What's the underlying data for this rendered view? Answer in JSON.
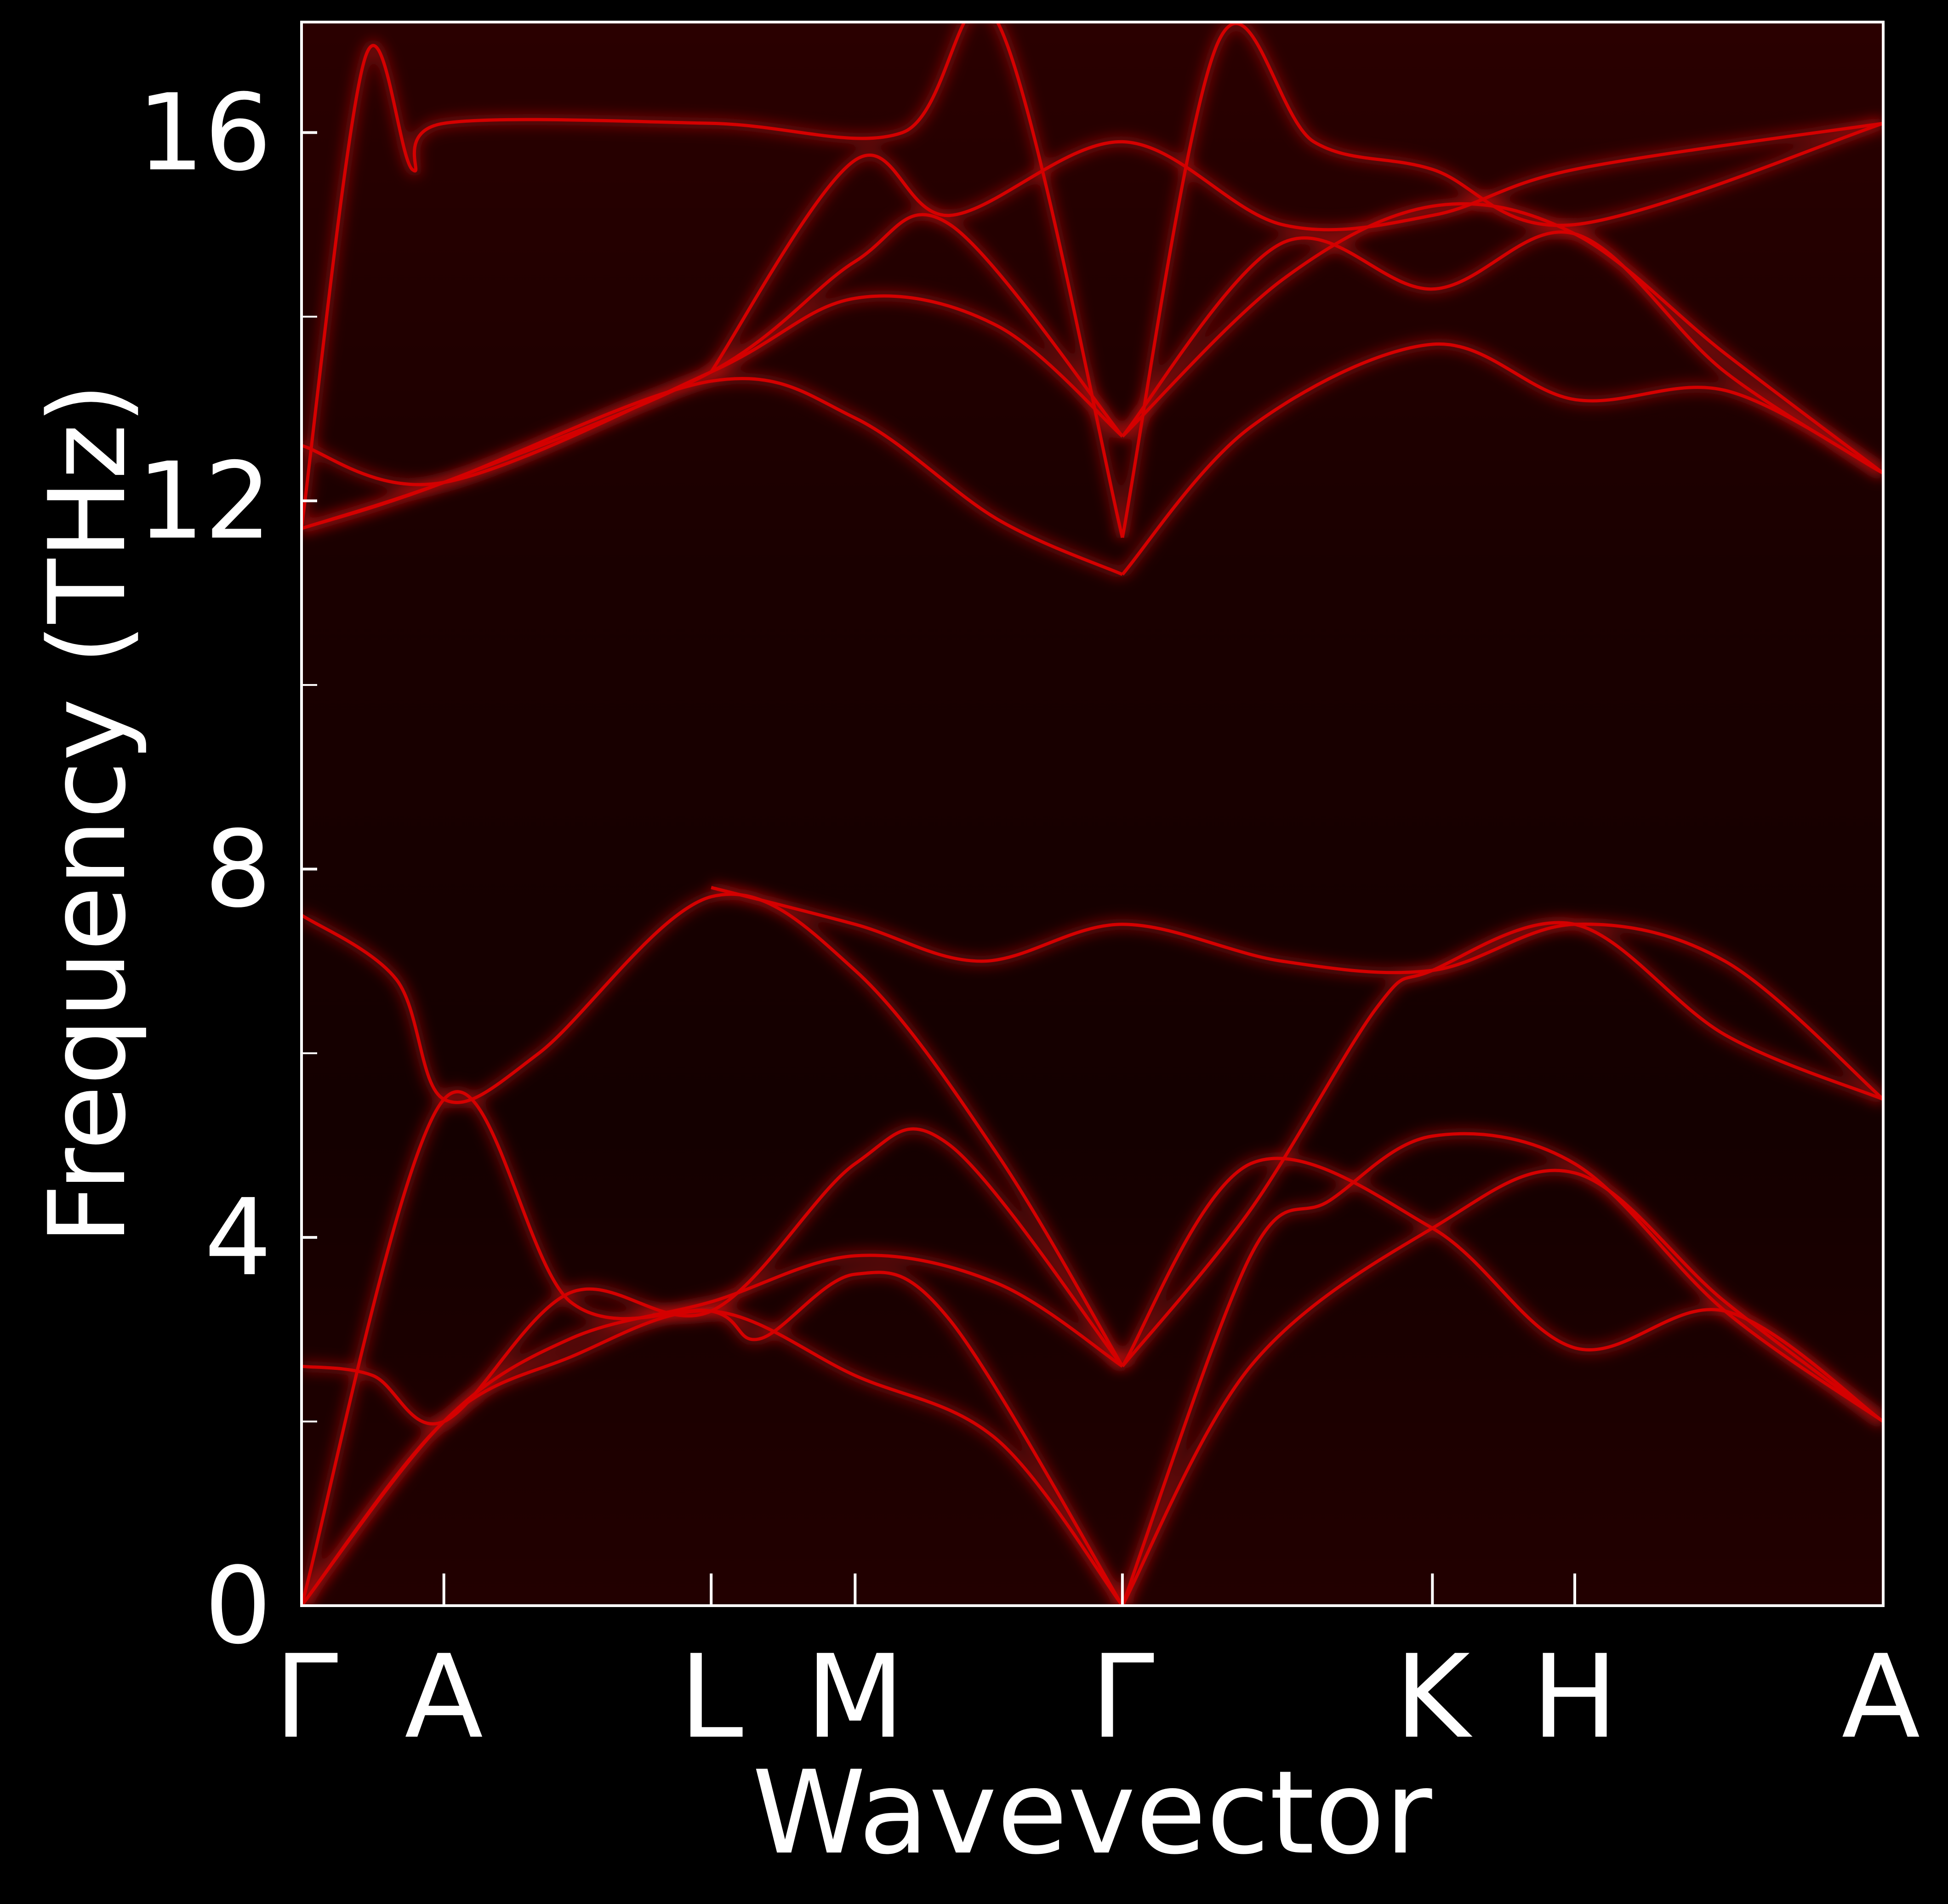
{
  "chart_data": {
    "type": "line",
    "title": "",
    "xlabel": "Wavevector",
    "ylabel": "Frequency (THz)",
    "ylim": [
      0,
      17.2
    ],
    "y_ticks_major": [
      0,
      4,
      8,
      12,
      16
    ],
    "y_ticks_minor": [
      2,
      6,
      10,
      14
    ],
    "x_points": [
      {
        "label": "Γ",
        "x": 0.0
      },
      {
        "label": "A",
        "x": 0.09
      },
      {
        "label": "L",
        "x": 0.259
      },
      {
        "label": "M",
        "x": 0.35
      },
      {
        "label": "Γ",
        "x": 0.519
      },
      {
        "label": "K",
        "x": 0.715
      },
      {
        "label": "H",
        "x": 0.805
      },
      {
        "label": "A",
        "x": 1.0
      }
    ],
    "xlim": [
      0,
      1
    ],
    "colors": {
      "background": "#000000",
      "plot_background": "#1a0000",
      "band": "#d40000",
      "glow": "#ff1a1a",
      "axes": "#ffffff"
    },
    "series": [
      {
        "x": [
          0,
          0.09,
          0.17,
          0.259,
          0.35,
          0.44,
          0.519
        ],
        "y": [
          0,
          2.0,
          2.9,
          3.3,
          3.8,
          3.5,
          2.6
        ]
      },
      {
        "x": [
          0,
          0.09,
          0.17,
          0.259,
          0.35,
          0.44,
          0.519
        ],
        "y": [
          0,
          2.0,
          2.7,
          3.2,
          2.5,
          1.8,
          0
        ]
      },
      {
        "x": [
          0,
          0.045,
          0.09,
          0.17,
          0.259,
          0.35,
          0.41,
          0.519
        ],
        "y": [
          2.6,
          2.5,
          2.0,
          3.4,
          3.2,
          4.8,
          5.0,
          2.6
        ]
      },
      {
        "x": [
          0,
          0.09,
          0.17,
          0.259,
          0.29,
          0.35,
          0.41,
          0.519
        ],
        "y": [
          0,
          5.5,
          3.3,
          3.2,
          2.9,
          3.6,
          3.1,
          0.0
        ]
      },
      {
        "x": [
          0,
          0.06,
          0.09,
          0.15,
          0.259,
          0.35,
          0.44,
          0.519
        ],
        "y": [
          7.5,
          6.8,
          5.5,
          6.0,
          7.7,
          6.9,
          4.9,
          2.6
        ]
      },
      {
        "x": [
          0.259,
          0.35,
          0.43,
          0.519,
          0.62,
          0.715,
          0.805,
          0.9,
          1.0
        ],
        "y": [
          7.8,
          7.4,
          7.0,
          7.4,
          7.0,
          6.9,
          7.4,
          7.0,
          5.5
        ]
      },
      {
        "x": [
          0.519,
          0.6,
          0.715,
          0.805,
          0.9,
          1.0
        ],
        "y": [
          2.6,
          4.8,
          4.1,
          2.8,
          3.2,
          2.0
        ]
      },
      {
        "x": [
          0.519,
          0.6,
          0.715,
          0.805,
          0.9,
          1.0
        ],
        "y": [
          0,
          2.6,
          4.1,
          4.7,
          3.3,
          2.0
        ]
      },
      {
        "x": [
          0.519,
          0.6,
          0.65,
          0.715,
          0.805,
          0.9,
          1.0
        ],
        "y": [
          0,
          3.8,
          4.4,
          5.1,
          4.8,
          3.2,
          2.0
        ]
      },
      {
        "x": [
          0.519,
          0.6,
          0.68,
          0.715,
          0.805,
          0.9,
          1.0
        ],
        "y": [
          2.6,
          4.3,
          6.5,
          6.9,
          7.4,
          6.2,
          5.5
        ]
      },
      {
        "x": [
          0,
          0.09,
          0.259,
          0.35,
          0.44,
          0.519
        ],
        "y": [
          12.6,
          12.2,
          13.4,
          14.2,
          13.9,
          12.7
        ]
      },
      {
        "x": [
          0,
          0.09,
          0.259,
          0.35,
          0.44,
          0.519
        ],
        "y": [
          11.7,
          12.2,
          13.3,
          12.9,
          11.8,
          11.2
        ]
      },
      {
        "x": [
          0,
          0.09,
          0.259,
          0.35,
          0.41,
          0.519
        ],
        "y": [
          11.7,
          12.2,
          13.4,
          14.6,
          15.0,
          12.7
        ]
      },
      {
        "x": [
          0.259,
          0.35,
          0.41,
          0.519,
          0.62,
          0.715,
          0.805,
          1.0
        ],
        "y": [
          13.4,
          15.7,
          15.1,
          15.9,
          15.0,
          15.1,
          15.6,
          16.1
        ]
      },
      {
        "x": [
          0.519,
          0.62,
          0.715,
          0.805,
          0.9,
          1.0
        ],
        "y": [
          12.7,
          14.8,
          14.3,
          14.9,
          13.4,
          12.3
        ]
      },
      {
        "x": [
          0.519,
          0.6,
          0.715,
          0.805,
          0.9,
          1.0
        ],
        "y": [
          11.2,
          12.8,
          13.7,
          13.1,
          13.2,
          12.3
        ]
      },
      {
        "x": [
          0.519,
          0.62,
          0.715,
          0.805,
          0.9,
          1.0
        ],
        "y": [
          12.7,
          14.4,
          15.2,
          14.9,
          13.6,
          12.3
        ]
      },
      {
        "x": [
          0,
          0.04,
          0.07,
          0.09,
          0.259,
          0.38,
          0.44,
          0.519
        ],
        "y": [
          11.7,
          16.8,
          15.6,
          16.1,
          16.1,
          16.0,
          17.2,
          11.6
        ]
      },
      {
        "x": [
          0.519,
          0.58,
          0.64,
          0.715,
          0.805,
          1.0
        ],
        "y": [
          11.6,
          17.0,
          15.9,
          15.6,
          15.0,
          16.1
        ]
      }
    ]
  }
}
